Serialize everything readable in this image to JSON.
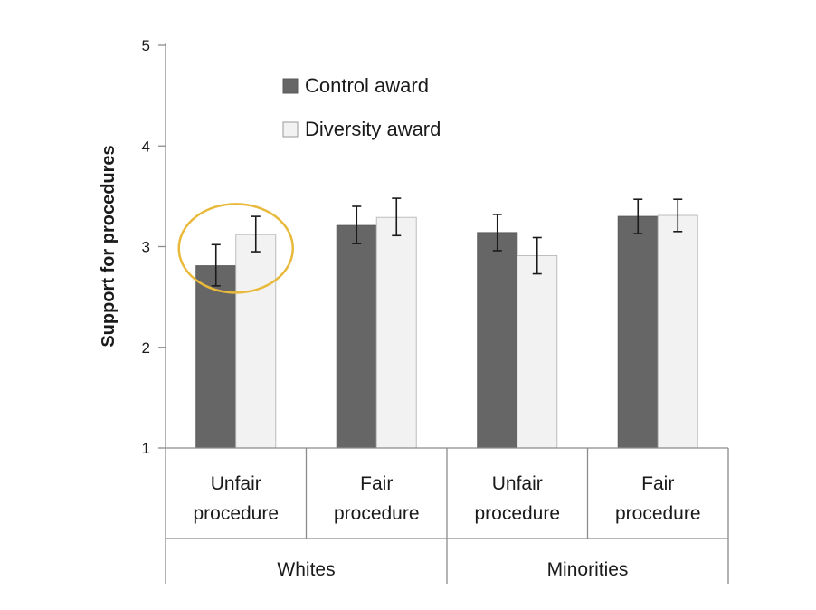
{
  "chart_data": {
    "type": "bar",
    "ylabel": "Support for procedures",
    "xlabel": "",
    "ylim": [
      1,
      5
    ],
    "yticks": [
      1,
      2,
      3,
      4,
      5
    ],
    "grid": false,
    "legend_position": "top-left",
    "groups": [
      {
        "label": "Whites",
        "categories": [
          "Unfair procedure",
          "Fair procedure"
        ]
      },
      {
        "label": "Minorities",
        "categories": [
          "Unfair procedure",
          "Fair procedure"
        ]
      }
    ],
    "category_lines": [
      [
        "Unfair",
        "procedure"
      ],
      [
        "Fair",
        "procedure"
      ],
      [
        "Unfair",
        "procedure"
      ],
      [
        "Fair",
        "procedure"
      ]
    ],
    "series": [
      {
        "name": "Control award",
        "color": "#666666",
        "values": [
          2.81,
          3.21,
          3.14,
          3.3
        ],
        "error_low": [
          2.61,
          3.03,
          2.96,
          3.13
        ],
        "error_high": [
          3.02,
          3.4,
          3.32,
          3.47
        ]
      },
      {
        "name": "Diversity award",
        "color": "#f2f2f2",
        "values": [
          3.12,
          3.29,
          2.91,
          3.31
        ],
        "error_low": [
          2.95,
          3.11,
          2.73,
          3.15
        ],
        "error_high": [
          3.3,
          3.48,
          3.09,
          3.47
        ]
      }
    ],
    "annotation": {
      "type": "highlight-ellipse",
      "target": "Whites / Unfair procedure",
      "color": "#e8b93a"
    }
  }
}
